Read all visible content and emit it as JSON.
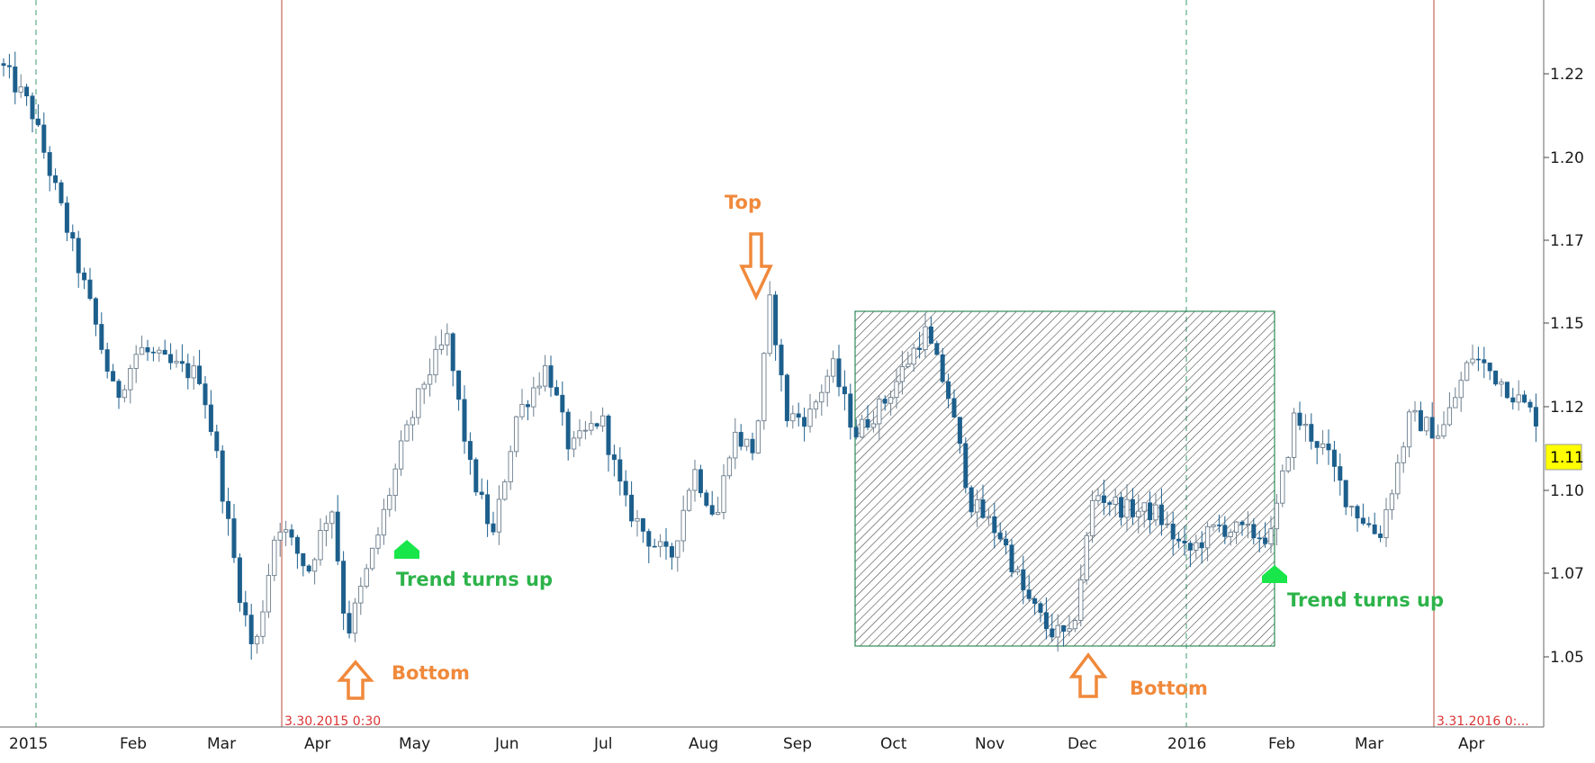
{
  "chart_data": {
    "type": "candlestick",
    "y_axis": {
      "ticks": [
        "1.22",
        "1.20",
        "1.17",
        "1.15",
        "1.12",
        "1.10",
        "1.07",
        "1.05"
      ],
      "range": [
        1.03,
        1.24
      ]
    },
    "x_axis": {
      "ticks": [
        "2015",
        "Feb",
        "Mar",
        "Apr",
        "May",
        "Jun",
        "Jul",
        "Aug",
        "Sep",
        "Oct",
        "Nov",
        "Dec",
        "2016",
        "Feb",
        "Mar",
        "Apr"
      ]
    },
    "current_price": "1.11",
    "date_tags": [
      "3.30.2015 0:30",
      "3.31.2016 0:..."
    ],
    "annotations": [
      {
        "text": "Top",
        "color": "orange",
        "arrow": "down"
      },
      {
        "text": "Bottom",
        "color": "orange",
        "arrow": "up"
      },
      {
        "text": "Trend turns up",
        "color": "green"
      },
      {
        "text": "Bottom",
        "color": "orange",
        "arrow": "up"
      },
      {
        "text": "Trend turns up",
        "color": "green"
      }
    ],
    "price_path": [
      [
        0,
        1.223
      ],
      [
        0.02,
        1.21
      ],
      [
        0.04,
        1.18
      ],
      [
        0.06,
        1.15
      ],
      [
        0.075,
        1.125
      ],
      [
        0.09,
        1.14
      ],
      [
        0.11,
        1.135
      ],
      [
        0.13,
        1.132
      ],
      [
        0.14,
        1.11
      ],
      [
        0.155,
        1.07
      ],
      [
        0.165,
        1.05
      ],
      [
        0.18,
        1.09
      ],
      [
        0.2,
        1.075
      ],
      [
        0.215,
        1.095
      ],
      [
        0.225,
        1.056
      ],
      [
        0.245,
        1.085
      ],
      [
        0.26,
        1.11
      ],
      [
        0.275,
        1.13
      ],
      [
        0.29,
        1.143
      ],
      [
        0.305,
        1.105
      ],
      [
        0.32,
        1.085
      ],
      [
        0.335,
        1.12
      ],
      [
        0.355,
        1.135
      ],
      [
        0.37,
        1.11
      ],
      [
        0.39,
        1.12
      ],
      [
        0.405,
        1.095
      ],
      [
        0.42,
        1.085
      ],
      [
        0.435,
        1.078
      ],
      [
        0.45,
        1.105
      ],
      [
        0.465,
        1.09
      ],
      [
        0.475,
        1.115
      ],
      [
        0.49,
        1.11
      ],
      [
        0.5,
        1.155
      ],
      [
        0.51,
        1.12
      ],
      [
        0.525,
        1.12
      ],
      [
        0.54,
        1.135
      ],
      [
        0.555,
        1.115
      ],
      [
        0.575,
        1.125
      ],
      [
        0.6,
        1.145
      ],
      [
        0.615,
        1.127
      ],
      [
        0.63,
        1.095
      ],
      [
        0.65,
        1.085
      ],
      [
        0.665,
        1.068
      ],
      [
        0.68,
        1.058
      ],
      [
        0.695,
        1.055
      ],
      [
        0.71,
        1.098
      ],
      [
        0.73,
        1.093
      ],
      [
        0.75,
        1.092
      ],
      [
        0.77,
        1.08
      ],
      [
        0.79,
        1.088
      ],
      [
        0.81,
        1.086
      ],
      [
        0.825,
        1.085
      ],
      [
        0.84,
        1.12
      ],
      [
        0.86,
        1.11
      ],
      [
        0.875,
        1.095
      ],
      [
        0.895,
        1.085
      ],
      [
        0.915,
        1.12
      ],
      [
        0.935,
        1.115
      ],
      [
        0.955,
        1.138
      ],
      [
        0.975,
        1.13
      ],
      [
        1.0,
        1.118
      ]
    ],
    "colors": {
      "bull_outline": "#6b7d8c",
      "bear_fill": "#1d5f8c",
      "orange": "#f0893b",
      "green": "#2db34a",
      "badge": "#ffff00"
    }
  }
}
